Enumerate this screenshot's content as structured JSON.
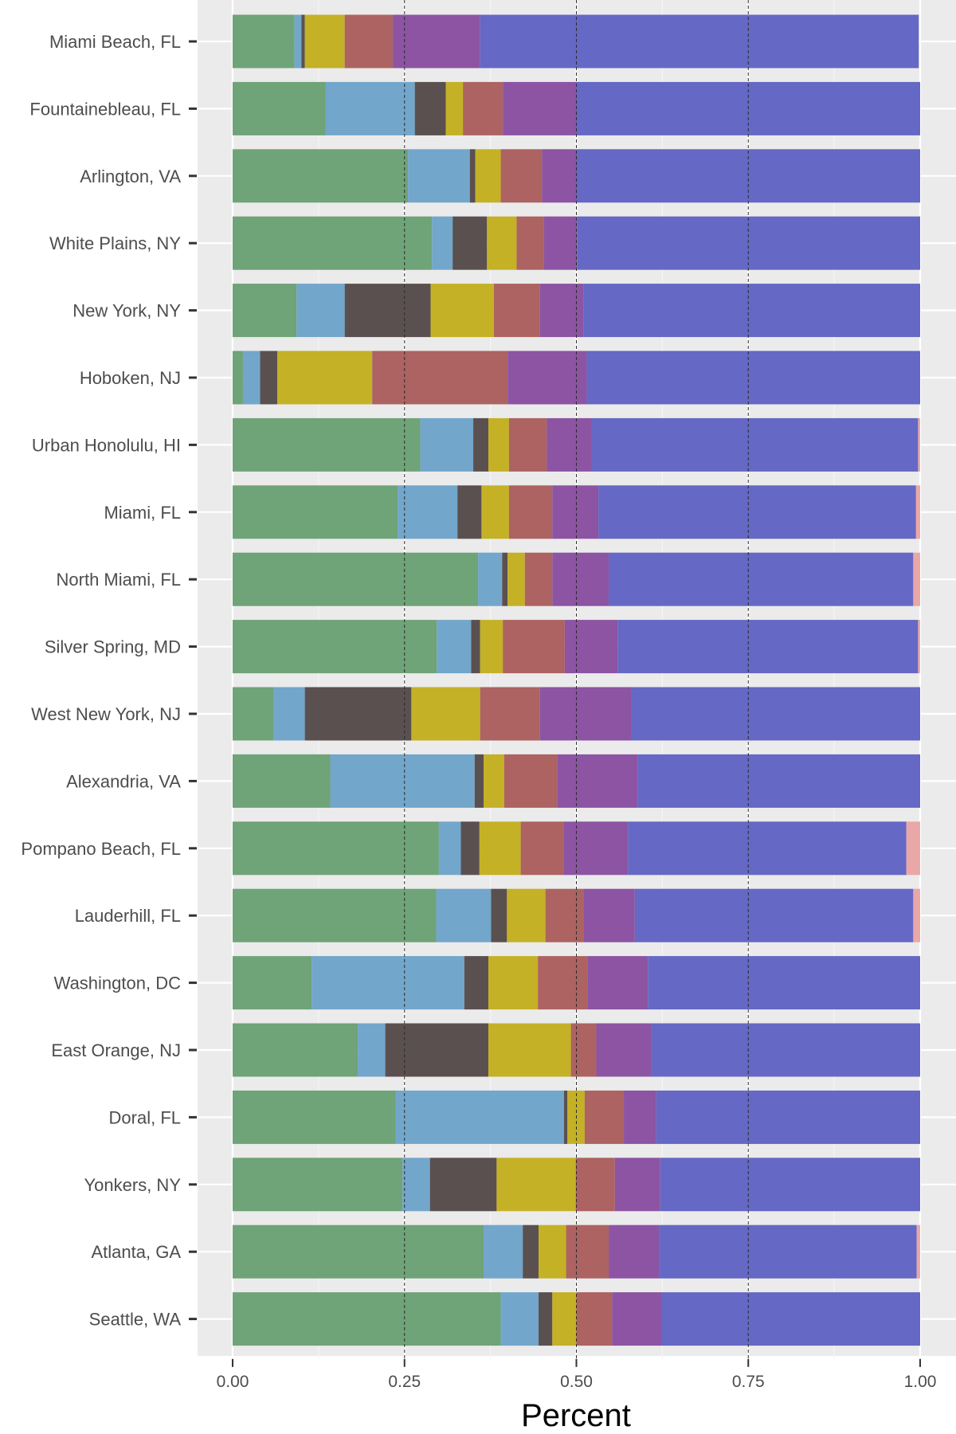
{
  "chart_data": {
    "type": "bar",
    "orientation": "horizontal",
    "stacked": true,
    "xlabel": "Percent",
    "ylabel": "",
    "xlim": [
      0,
      1
    ],
    "x_ticks": [
      "0.00",
      "0.25",
      "0.50",
      "0.75",
      "1.00"
    ],
    "x_tick_values": [
      0,
      0.25,
      0.5,
      0.75,
      1
    ],
    "reference_lines_x": [
      0.25,
      0.5,
      0.75
    ],
    "grid": true,
    "legend": "none",
    "categories": [
      "Miami Beach, FL",
      "Fountainebleau, FL",
      "Arlington, VA",
      "White Plains, NY",
      "New York, NY",
      "Hoboken, NJ",
      "Urban Honolulu, HI",
      "Miami, FL",
      "North Miami, FL",
      "Silver Spring, MD",
      "West New York, NJ",
      "Alexandria, VA",
      "Pompano Beach, FL",
      "Lauderhill, FL",
      "Washington, DC",
      "East Orange, NJ",
      "Doral, FL",
      "Yonkers, NY",
      "Atlanta, GA",
      "Seattle, WA"
    ],
    "series": [
      {
        "color": "#6fa378",
        "values": [
          0.09,
          0.135,
          0.255,
          0.29,
          0.093,
          0.015,
          0.273,
          0.24,
          0.357,
          0.297,
          0.06,
          0.142,
          0.3,
          0.296,
          0.115,
          0.182,
          0.237,
          0.247,
          0.365,
          0.39
        ]
      },
      {
        "color": "#73a6cb",
        "values": [
          0.01,
          0.13,
          0.09,
          0.03,
          0.07,
          0.025,
          0.077,
          0.087,
          0.035,
          0.05,
          0.045,
          0.21,
          0.032,
          0.08,
          0.222,
          0.04,
          0.245,
          0.04,
          0.057,
          0.055
        ]
      },
      {
        "color": "#5b5050",
        "values": [
          0.005,
          0.045,
          0.008,
          0.05,
          0.125,
          0.025,
          0.022,
          0.035,
          0.008,
          0.013,
          0.155,
          0.013,
          0.027,
          0.023,
          0.035,
          0.15,
          0.005,
          0.097,
          0.023,
          0.02
        ]
      },
      {
        "color": "#c4b126",
        "values": [
          0.058,
          0.025,
          0.037,
          0.043,
          0.092,
          0.138,
          0.03,
          0.04,
          0.025,
          0.033,
          0.1,
          0.03,
          0.06,
          0.056,
          0.072,
          0.12,
          0.025,
          0.115,
          0.04,
          0.035
        ]
      },
      {
        "color": "#ac6361",
        "values": [
          0.07,
          0.058,
          0.06,
          0.04,
          0.067,
          0.197,
          0.055,
          0.063,
          0.04,
          0.09,
          0.087,
          0.077,
          0.063,
          0.055,
          0.072,
          0.037,
          0.057,
          0.057,
          0.062,
          0.052
        ]
      },
      {
        "color": "#8c54a3",
        "values": [
          0.127,
          0.107,
          0.05,
          0.048,
          0.063,
          0.115,
          0.065,
          0.067,
          0.082,
          0.077,
          0.133,
          0.117,
          0.093,
          0.075,
          0.088,
          0.08,
          0.047,
          0.066,
          0.073,
          0.072
        ]
      },
      {
        "color": "#6568c4",
        "values": [
          0.638,
          0.5,
          0.5,
          0.499,
          0.49,
          0.485,
          0.475,
          0.462,
          0.443,
          0.437,
          0.42,
          0.411,
          0.405,
          0.405,
          0.396,
          0.391,
          0.384,
          0.378,
          0.375,
          0.376
        ]
      },
      {
        "color": "#eaa7a8",
        "values": [
          0,
          0,
          0,
          0,
          0,
          0,
          0.003,
          0.006,
          0.01,
          0.003,
          0,
          0,
          0.02,
          0.015,
          0,
          0,
          0,
          0,
          0.005,
          0
        ]
      }
    ]
  }
}
